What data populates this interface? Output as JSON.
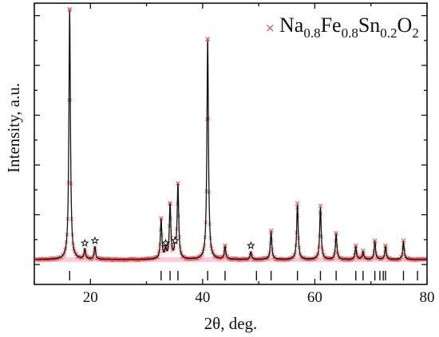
{
  "chart_data": {
    "type": "line",
    "title": "",
    "xlabel": "2θ, deg.",
    "ylabel": "Intensity, a.u.",
    "xlim": [
      10,
      80
    ],
    "ylim": [
      -0.08,
      1.05
    ],
    "grid": false,
    "legend_position": "top-right",
    "xticks": [
      20,
      40,
      60,
      80
    ],
    "x_tick_labels": [
      "20",
      "40",
      "60",
      "80"
    ],
    "legend": {
      "symbol": "×",
      "name_parts": [
        {
          "text": "Na",
          "sub": false
        },
        {
          "text": "0.8",
          "sub": true
        },
        {
          "text": "Fe",
          "sub": false
        },
        {
          "text": "0.8",
          "sub": true
        },
        {
          "text": "Sn",
          "sub": false
        },
        {
          "text": "0.2",
          "sub": true
        },
        {
          "text": "O",
          "sub": false
        },
        {
          "text": "2",
          "sub": true
        }
      ]
    },
    "colors": {
      "observed": "#e05050",
      "calculated": "#111111",
      "background_band": "#f4b8c8",
      "bragg_marks": "#111111",
      "impurity_marks": "#111111"
    },
    "baseline": 0.02,
    "peaks": [
      {
        "x": 16.3,
        "y": 1.0
      },
      {
        "x": 32.6,
        "y": 0.16
      },
      {
        "x": 34.2,
        "y": 0.22
      },
      {
        "x": 35.6,
        "y": 0.3
      },
      {
        "x": 40.9,
        "y": 0.88
      },
      {
        "x": 44.0,
        "y": 0.05
      },
      {
        "x": 52.2,
        "y": 0.11
      },
      {
        "x": 56.9,
        "y": 0.22
      },
      {
        "x": 61.0,
        "y": 0.21
      },
      {
        "x": 63.8,
        "y": 0.1
      },
      {
        "x": 67.3,
        "y": 0.05
      },
      {
        "x": 68.6,
        "y": 0.03
      },
      {
        "x": 70.7,
        "y": 0.07
      },
      {
        "x": 72.6,
        "y": 0.05
      },
      {
        "x": 75.8,
        "y": 0.07
      }
    ],
    "impurity_peaks": [
      {
        "x": 19.0,
        "y": 0.04
      },
      {
        "x": 20.8,
        "y": 0.05
      },
      {
        "x": 33.4,
        "y": 0.04
      },
      {
        "x": 35.1,
        "y": 0.05
      },
      {
        "x": 48.6,
        "y": 0.03
      }
    ],
    "bragg_positions": [
      16.3,
      32.6,
      34.2,
      35.6,
      40.9,
      44.0,
      49.6,
      52.2,
      56.9,
      61.0,
      63.8,
      67.3,
      68.6,
      70.7,
      71.6,
      72.2,
      72.6,
      75.8,
      78.3
    ]
  }
}
